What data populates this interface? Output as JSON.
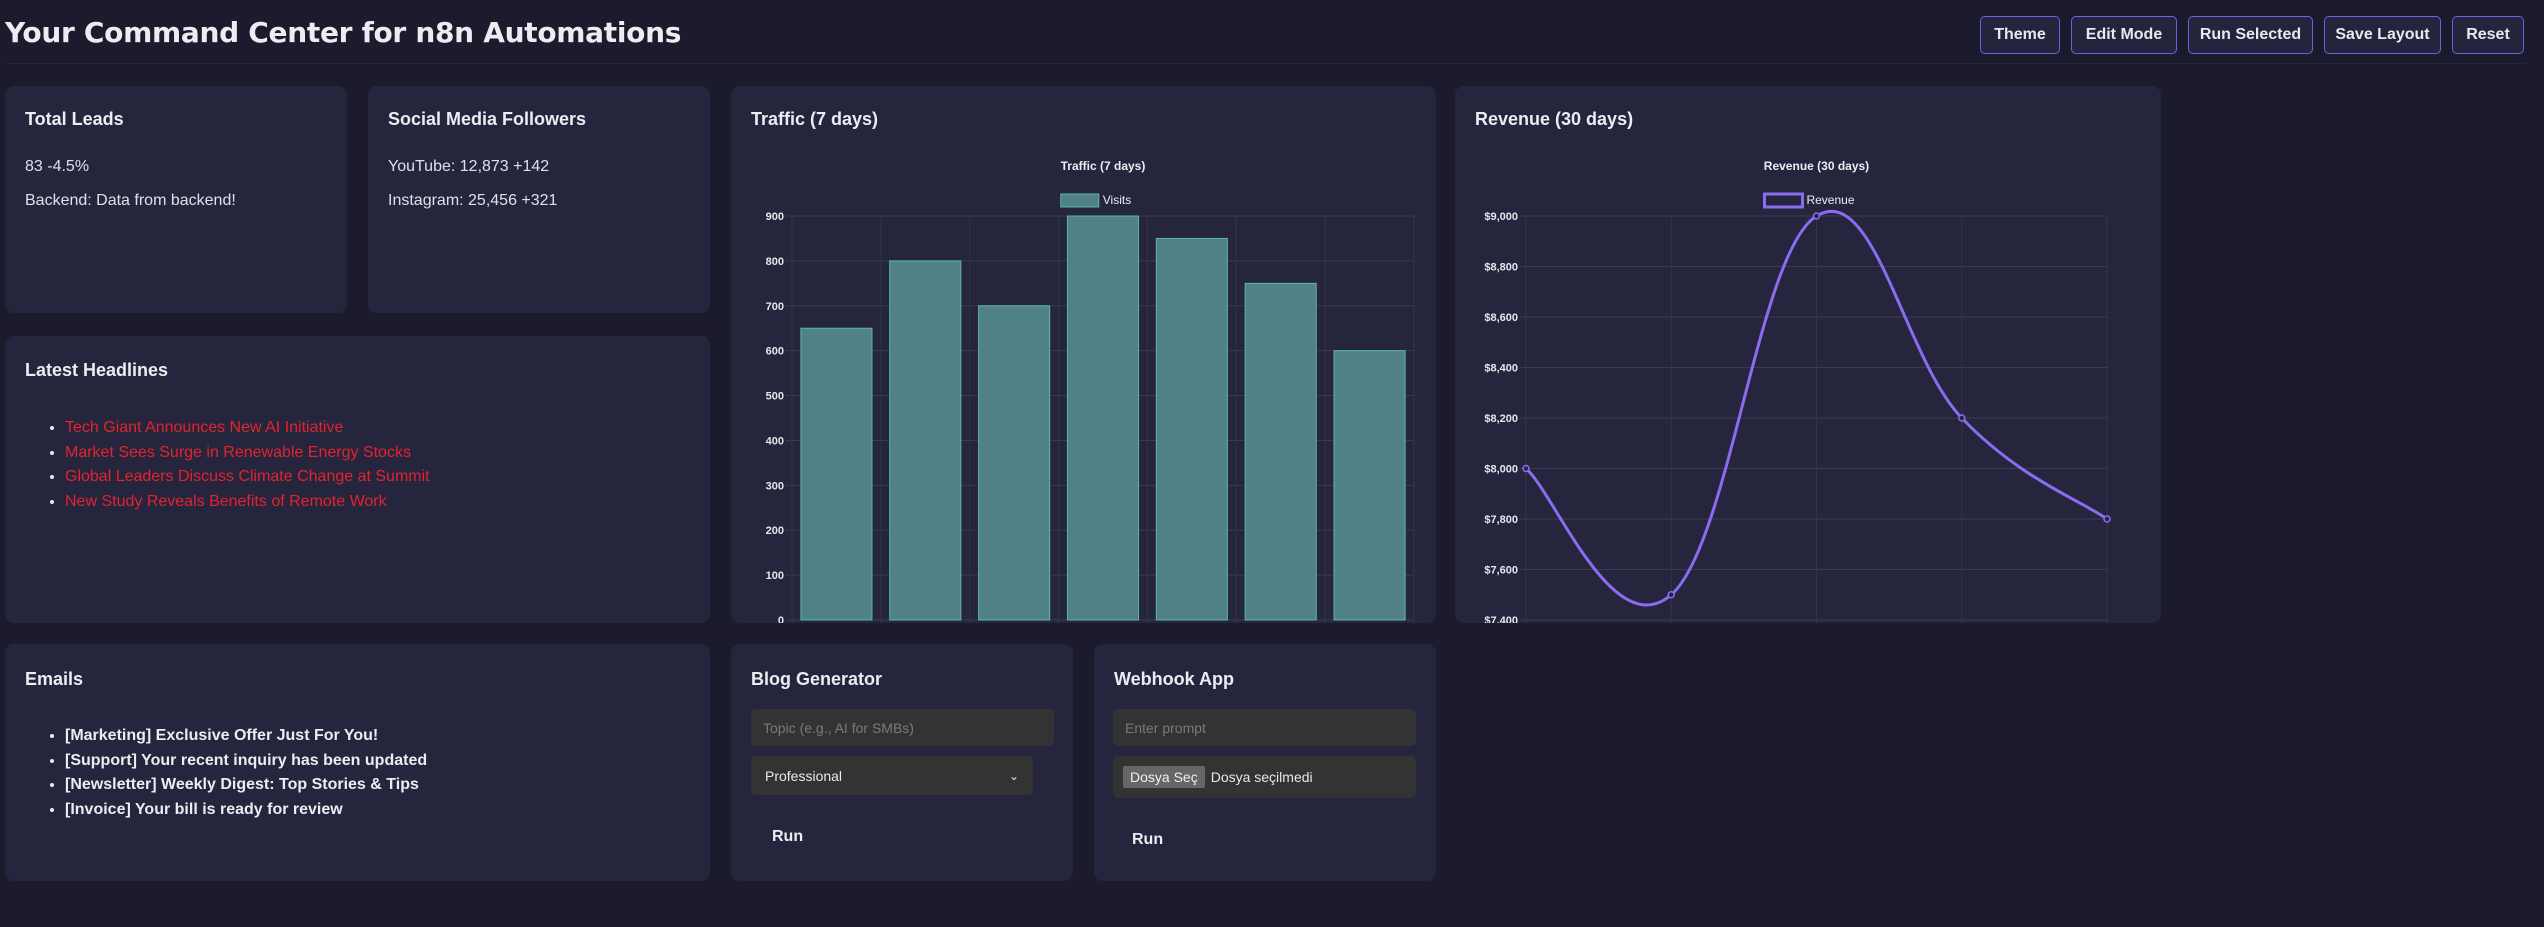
{
  "header": {
    "title": "Your Command Center for n8n Automations",
    "buttons": [
      "Theme",
      "Edit Mode",
      "Run Selected",
      "Save Layout",
      "Reset"
    ]
  },
  "total_leads": {
    "title": "Total Leads",
    "value": "83 -4.5%",
    "backend": "Backend: Data from backend!"
  },
  "social": {
    "title": "Social Media Followers",
    "youtube": "YouTube: 12,873 +142",
    "instagram": "Instagram: 25,456 +321"
  },
  "headlines": {
    "title": "Latest Headlines",
    "link_color": "#e3232d",
    "items": [
      "Tech Giant Announces New AI Initiative",
      "Market Sees Surge in Renewable Energy Stocks",
      "Global Leaders Discuss Climate Change at Summit",
      "New Study Reveals Benefits of Remote Work"
    ]
  },
  "emails": {
    "title": "Emails",
    "items": [
      "[Marketing] Exclusive Offer Just For You!",
      "[Support] Your recent inquiry has been updated",
      "[Newsletter] Weekly Digest: Top Stories & Tips",
      "[Invoice] Your bill is ready for review"
    ]
  },
  "blog": {
    "title": "Blog Generator",
    "topic_placeholder": "Topic (e.g., AI for SMBs)",
    "tone_selected": "Professional",
    "run_label": "Run"
  },
  "webhook": {
    "title": "Webhook App",
    "prompt_placeholder": "Enter prompt",
    "file_button": "Dosya Seç",
    "file_status": "Dosya seçilmedi",
    "run_label": "Run"
  },
  "traffic": {
    "title": "Traffic (7 days)"
  },
  "revenue": {
    "title": "Revenue (30 days)"
  },
  "chart_data": [
    {
      "type": "bar",
      "title": "Traffic (7 days)",
      "series": [
        {
          "name": "Visits",
          "values": [
            650,
            800,
            700,
            900,
            850,
            750,
            600
          ],
          "color": "#4f8186",
          "border": "#5fb3b3"
        }
      ],
      "ylim": [
        0,
        900
      ],
      "yticks": [
        "0",
        "100",
        "200",
        "300",
        "400",
        "500",
        "600",
        "700",
        "800",
        "900"
      ],
      "grid": true,
      "legend": "top"
    },
    {
      "type": "line",
      "title": "Revenue (30 days)",
      "series": [
        {
          "name": "Revenue",
          "values": [
            8000,
            7500,
            9000,
            8200,
            7800
          ],
          "color": "#8b6cf0"
        }
      ],
      "ylim": [
        7400,
        9000
      ],
      "yticks": [
        "$7,400",
        "$7,600",
        "$7,800",
        "$8,000",
        "$8,200",
        "$8,400",
        "$8,600",
        "$8,800",
        "$9,000"
      ],
      "grid": true,
      "legend": "top"
    }
  ]
}
